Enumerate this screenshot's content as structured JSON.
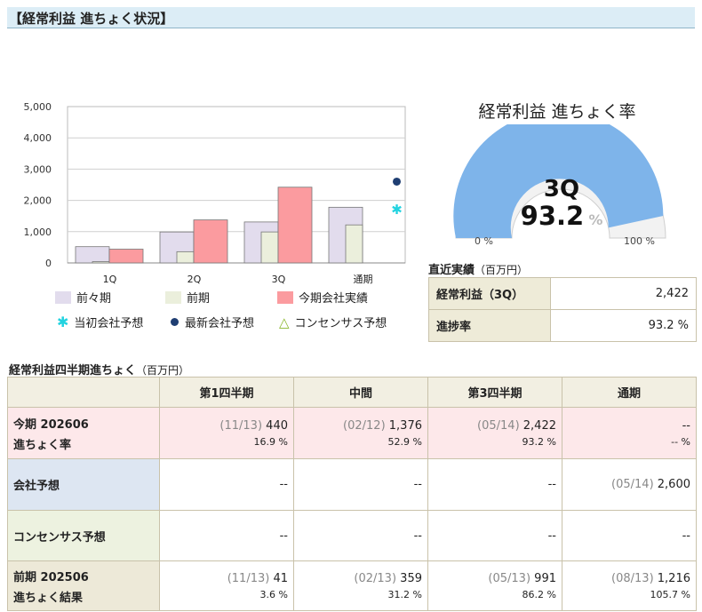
{
  "header": {
    "title": "【経常利益 進ちょく状況】"
  },
  "colors": {
    "prev2": "#e2dced",
    "prev": "#ebefdc",
    "current": "#fb9b9f",
    "gauge_fill": "#7eb4ea",
    "gauge_rest": "#f2f2f2"
  },
  "chart_data": {
    "type": "bar",
    "categories": [
      "1Q",
      "2Q",
      "3Q",
      "通期"
    ],
    "y_ticks": [
      "5,000",
      "4,000",
      "3,000",
      "2,000",
      "1,000",
      "0"
    ],
    "ylim": [
      0,
      5000
    ],
    "series": [
      {
        "name": "前々期",
        "values": [
          520,
          990,
          1310,
          1780
        ]
      },
      {
        "name": "前期",
        "values": [
          41,
          359,
          991,
          1216
        ]
      },
      {
        "name": "今期会社実績",
        "values": [
          440,
          1376,
          2422,
          null
        ]
      }
    ],
    "markers": [
      {
        "name": "当初会社予想",
        "category": "通期",
        "value": 1730
      },
      {
        "name": "最新会社予想",
        "category": "通期",
        "value": 2600
      },
      {
        "name": "コンセンサス予想",
        "category": "通期",
        "value": null
      }
    ],
    "legend": [
      "前々期",
      "前期",
      "今期会社実績",
      "当初会社予想",
      "最新会社予想",
      "コンセンサス予想"
    ]
  },
  "gauge": {
    "title": "経常利益 進ちょく率",
    "quarter": "3Q",
    "value": "93.2",
    "unit": "%",
    "fraction": 0.932,
    "min_label": "0 %",
    "max_label": "100 %"
  },
  "recent": {
    "title": "直近実績",
    "unit": "（百万円）",
    "rows": [
      {
        "label": "経常利益（3Q）",
        "value": "2,422"
      },
      {
        "label": "進捗率",
        "value": "93.2 %"
      }
    ]
  },
  "quarterly": {
    "title": "経常利益四半期進ちょく",
    "unit": "（百万円）",
    "headers": [
      "第1四半期",
      "中間",
      "第3四半期",
      "通期"
    ],
    "rows": [
      {
        "label1": "今期 202606",
        "label2": "進ちょく率",
        "cells": [
          {
            "date": "(11/13)",
            "value": "440",
            "pct": "16.9 %"
          },
          {
            "date": "(02/12)",
            "value": "1,376",
            "pct": "52.9 %"
          },
          {
            "date": "(05/14)",
            "value": "2,422",
            "pct": "93.2 %"
          },
          {
            "date": "",
            "value": "--",
            "pct": "-- %"
          }
        ]
      },
      {
        "label1": "会社予想",
        "cells": [
          {
            "date": "",
            "value": "--"
          },
          {
            "date": "",
            "value": "--"
          },
          {
            "date": "",
            "value": "--"
          },
          {
            "date": "(05/14)",
            "value": "2,600"
          }
        ]
      },
      {
        "label1": "コンセンサス予想",
        "cells": [
          {
            "date": "",
            "value": "--"
          },
          {
            "date": "",
            "value": "--"
          },
          {
            "date": "",
            "value": "--"
          },
          {
            "date": "",
            "value": "--"
          }
        ]
      },
      {
        "label1": "前期 202506",
        "label2": "進ちょく結果",
        "cells": [
          {
            "date": "(11/13)",
            "value": "41",
            "pct": "3.6 %"
          },
          {
            "date": "(02/13)",
            "value": "359",
            "pct": "31.2 %"
          },
          {
            "date": "(05/13)",
            "value": "991",
            "pct": "86.2 %"
          },
          {
            "date": "(08/13)",
            "value": "1,216",
            "pct": "105.7 %"
          }
        ]
      }
    ]
  }
}
